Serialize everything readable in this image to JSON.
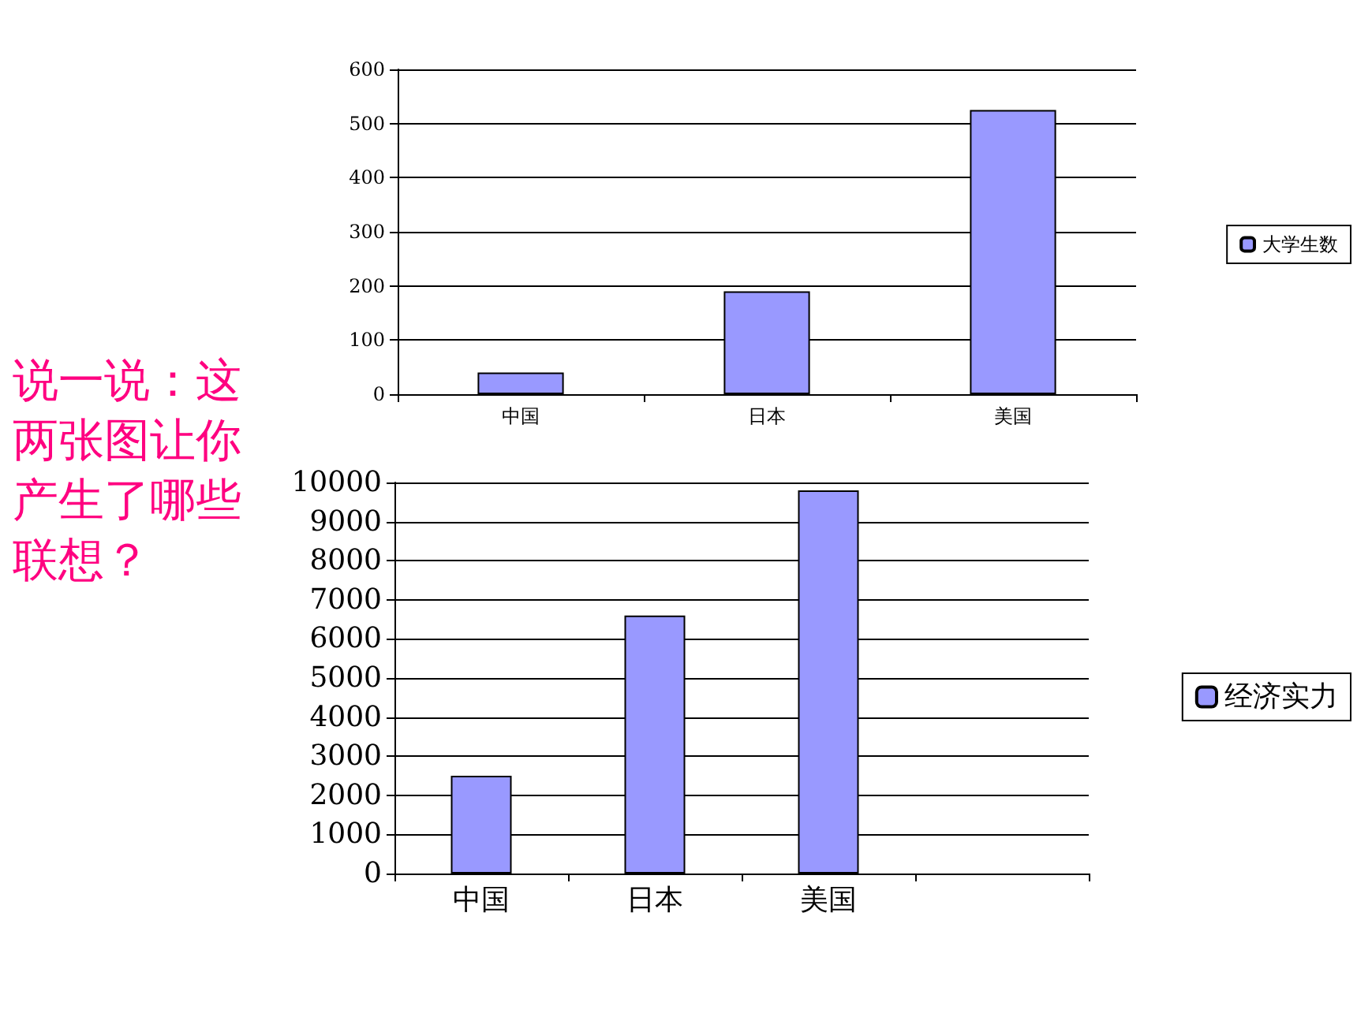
{
  "chart_data": [
    {
      "type": "bar",
      "categories": [
        "中国",
        "日本",
        "美国"
      ],
      "series": [
        {
          "name": "大学生数",
          "color": "#9999ff",
          "values": [
            40,
            190,
            525
          ]
        }
      ],
      "ylim": [
        0,
        600
      ],
      "yticks": [
        0,
        100,
        200,
        300,
        400,
        500,
        600
      ],
      "grid": "y",
      "legend": "right",
      "annotations": [
        "说一说：这两张图让你产生了哪些联想？"
      ]
    },
    {
      "type": "bar",
      "categories": [
        "中国",
        "日本",
        "美国",
        null
      ],
      "series": [
        {
          "name": "经济实力",
          "color": "#9999ff",
          "values": [
            2500,
            6600,
            9800,
            null
          ]
        }
      ],
      "ylim": [
        0,
        10000
      ],
      "yticks": [
        0,
        1000,
        2000,
        3000,
        4000,
        5000,
        6000,
        7000,
        8000,
        9000,
        10000
      ],
      "grid": "y",
      "legend": "right"
    }
  ]
}
